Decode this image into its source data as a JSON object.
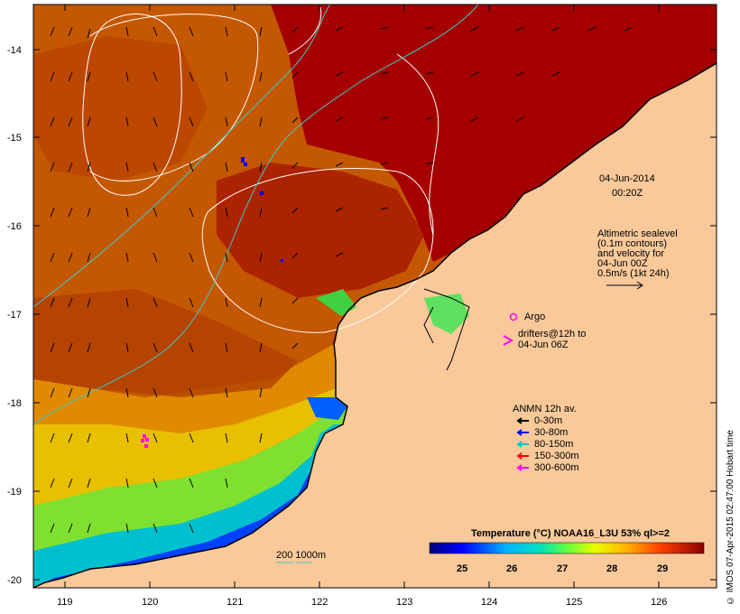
{
  "map": {
    "x_axis": {
      "min": 118.65,
      "max": 126.7,
      "ticks": [
        "119",
        "120",
        "121",
        "122",
        "123",
        "124",
        "125",
        "126"
      ]
    },
    "y_axis": {
      "min": -20.05,
      "max": -13.6,
      "ticks": [
        "-14",
        "-15",
        "-16",
        "-17",
        "-18",
        "-19",
        "-20"
      ]
    },
    "colors": {
      "land": "#f9c99a",
      "sea_warm": "#a40000",
      "coast": "#000000",
      "contour": "#ffffff",
      "isobath": "#32c8c8",
      "argo": "#ff00ff"
    }
  },
  "annotations": {
    "date": "04-Jun-2014",
    "time": "00:20Z",
    "altimetric_lines": [
      "Altimetric sealevel",
      "(0.1m contours)",
      "and velocity for",
      "04-Jun 00Z",
      "0.5m/s (1kt 24h)"
    ],
    "argo": "Argo",
    "drifters_lines": [
      "drifters@12h to",
      "04-Jun 06Z"
    ],
    "bathy_label": "200  1000m"
  },
  "anmn_legend": {
    "title": "ANMN 12h av.",
    "items": [
      {
        "label": "0-30m",
        "color": "#000000"
      },
      {
        "label": "30-80m",
        "color": "#0000ff"
      },
      {
        "label": "80-150m",
        "color": "#00c8c8"
      },
      {
        "label": "150-300m",
        "color": "#ff0000"
      },
      {
        "label": "300-600m",
        "color": "#ff00ff"
      }
    ]
  },
  "colorbar": {
    "title": "Temperature (°C) NOAA16_L3U 53% ql>=2",
    "ticks": [
      "25",
      "26",
      "27",
      "28",
      "29"
    ],
    "min": 24.3,
    "max": 29.8
  },
  "credit": "© IMOS 07-Apr-2015 02:47:00 Hobart time"
}
